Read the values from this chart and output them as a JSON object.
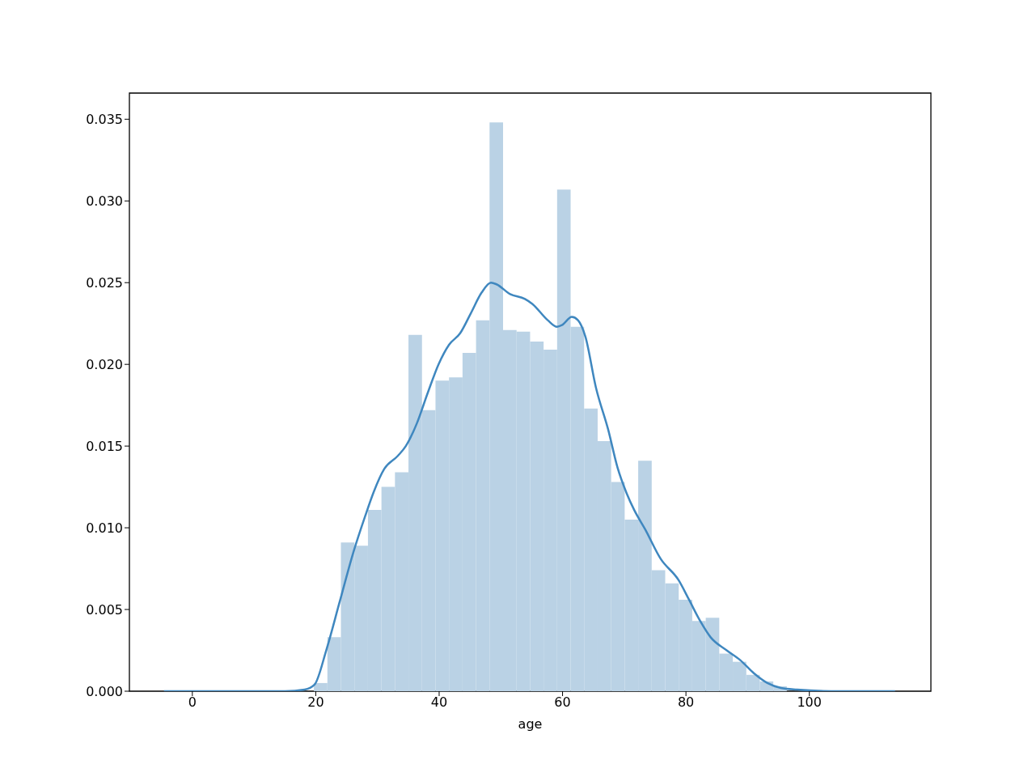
{
  "chart_data": {
    "type": "histogram",
    "xlabel": "age",
    "xlim": [
      -10.2,
      119.7
    ],
    "ylim": [
      0,
      0.0366
    ],
    "xticks": [
      0,
      20,
      40,
      60,
      80,
      100
    ],
    "yticks": [
      {
        "value": 0,
        "label": "0.000"
      },
      {
        "value": 0.005,
        "label": "0.005"
      },
      {
        "value": 0.01,
        "label": "0.010"
      },
      {
        "value": 0.015,
        "label": "0.015"
      },
      {
        "value": 0.02,
        "label": "0.020"
      },
      {
        "value": 0.025,
        "label": "0.025"
      },
      {
        "value": 0.03,
        "label": "0.030"
      },
      {
        "value": 0.035,
        "label": "0.035"
      }
    ],
    "series": [
      {
        "color": "#bad2e5",
        "bins": [
          19.7,
          21.89,
          24.08,
          26.27,
          28.46,
          30.65,
          32.84,
          35.03,
          37.22,
          39.41,
          41.6,
          43.79,
          45.98,
          48.17,
          50.36,
          52.55,
          54.74,
          56.93,
          59.12,
          61.31,
          63.5,
          65.69,
          67.88,
          70.07,
          72.26,
          74.45,
          76.64,
          78.83,
          81.02,
          83.21,
          85.4,
          87.59,
          89.78,
          91.97,
          94.16,
          96.35
        ],
        "values": [
          0.0005,
          0.0033,
          0.0091,
          0.0089,
          0.0111,
          0.0125,
          0.0134,
          0.0218,
          0.0172,
          0.019,
          0.0192,
          0.0207,
          0.0227,
          0.0348,
          0.0221,
          0.022,
          0.0214,
          0.0209,
          0.0307,
          0.0223,
          0.0173,
          0.0153,
          0.0128,
          0.0105,
          0.0141,
          0.0074,
          0.0066,
          0.0056,
          0.0043,
          0.0045,
          0.0023,
          0.0018,
          0.001,
          0.0006,
          0.0003
        ]
      },
      {
        "type": "line",
        "color": "#3f87bf",
        "x": [
          -4.6,
          5,
          15,
          18.2,
          19.8,
          21.7,
          23.9,
          26.1,
          28,
          29.4,
          31.1,
          33.3,
          34.6,
          36.4,
          38.1,
          39.9,
          41.6,
          43.4,
          45.1,
          46.9,
          48.4,
          49.3,
          51.5,
          53.9,
          55.1,
          57.6,
          59.1,
          59.9,
          61.5,
          62.5,
          63.7,
          65.4,
          67.4,
          68.9,
          70.4,
          71.6,
          73.4,
          75.9,
          78.8,
          80.5,
          82.3,
          84,
          86.6,
          88.8,
          91,
          93.2,
          95.4,
          98,
          105,
          113.9
        ],
        "values": [
          0,
          0,
          0,
          0.0001,
          0.0004,
          0.0025,
          0.0055,
          0.0085,
          0.0107,
          0.0122,
          0.0136,
          0.0144,
          0.015,
          0.0164,
          0.0182,
          0.02,
          0.0212,
          0.0219,
          0.0231,
          0.0244,
          0.025,
          0.0249,
          0.0243,
          0.024,
          0.0237,
          0.0227,
          0.0223,
          0.0224,
          0.0229,
          0.0227,
          0.0217,
          0.0186,
          0.016,
          0.0137,
          0.0121,
          0.0111,
          0.0099,
          0.0081,
          0.0068,
          0.0056,
          0.0043,
          0.0033,
          0.0025,
          0.0019,
          0.0011,
          0.0005,
          0.0002,
          0.0001,
          0,
          0
        ]
      }
    ]
  }
}
